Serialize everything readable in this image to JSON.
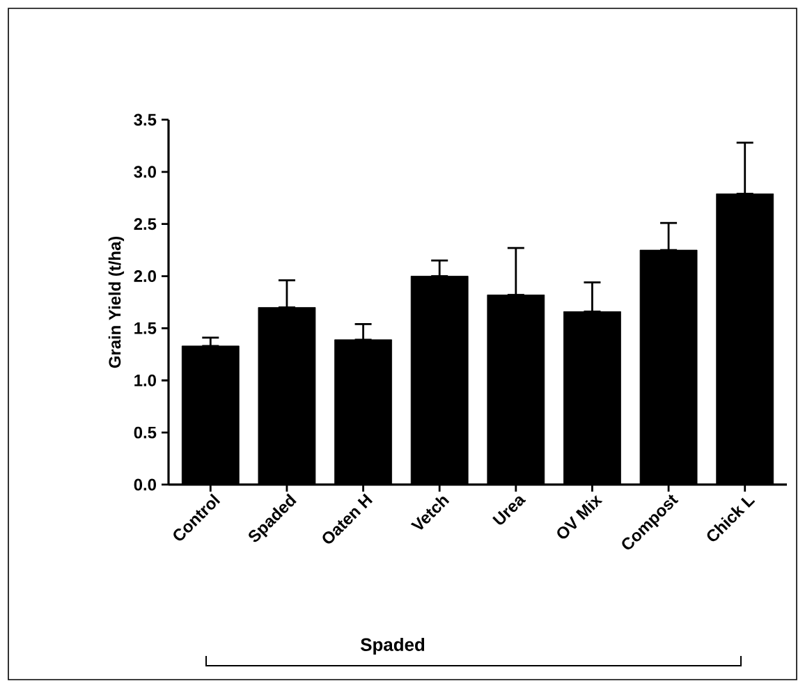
{
  "chart_data": {
    "type": "bar",
    "ylabel": "Grain Yield (t/ha)",
    "categories": [
      "Control",
      "Spaded",
      "Oaten H",
      "Vetch",
      "Urea",
      "OV Mix",
      "Compost",
      "Chick L"
    ],
    "values": [
      1.33,
      1.7,
      1.39,
      2.0,
      1.82,
      1.66,
      2.25,
      2.79
    ],
    "errors": [
      [
        1.33,
        1.41
      ],
      [
        1.7,
        1.96
      ],
      [
        1.39,
        1.54
      ],
      [
        2.0,
        2.15
      ],
      [
        1.82,
        2.27
      ],
      [
        1.66,
        1.94
      ],
      [
        2.25,
        2.51
      ],
      [
        2.79,
        3.28
      ]
    ],
    "color": "#000000",
    "ylim": [
      0,
      3.5
    ],
    "yticks": [
      {
        "value": 0,
        "label": "0.0"
      },
      {
        "value": 0.5,
        "label": "0.5"
      },
      {
        "value": 1,
        "label": "1.0"
      },
      {
        "value": 1.5,
        "label": "1.5"
      },
      {
        "value": 2,
        "label": "2.0"
      },
      {
        "value": 2.5,
        "label": "2.5"
      },
      {
        "value": 3,
        "label": "3.0"
      },
      {
        "value": 3.5,
        "label": "3.5"
      }
    ],
    "grid": false,
    "annotations": [
      "Spaded"
    ]
  }
}
